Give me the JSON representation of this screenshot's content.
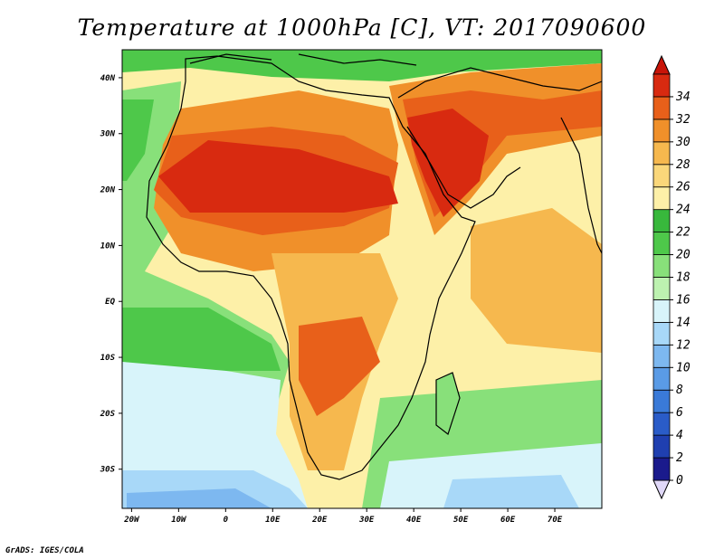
{
  "title": "Temperature at 1000hPa [C], VT: 2017090600",
  "credit": "GrADS: IGES/COLA",
  "map": {
    "lon_range": [
      -22,
      80
    ],
    "lat_range": [
      -37,
      45
    ],
    "lon_ticks": [
      "20W",
      "10W",
      "0",
      "10E",
      "20E",
      "30E",
      "40E",
      "50E",
      "60E",
      "70E"
    ],
    "lat_ticks": [
      "40N",
      "30N",
      "20N",
      "10N",
      "EQ",
      "10S",
      "20S",
      "30S"
    ]
  },
  "colorbar": {
    "labels": [
      "0",
      "2",
      "4",
      "6",
      "8",
      "10",
      "12",
      "14",
      "16",
      "18",
      "20",
      "22",
      "24",
      "26",
      "28",
      "30",
      "32",
      "34"
    ],
    "colors": [
      "#1a1a8c",
      "#1f3fb0",
      "#2a5cc8",
      "#3a7ad8",
      "#5a9be6",
      "#7db8f0",
      "#a8d8f8",
      "#d8f4fa",
      "#bdf2b0",
      "#88e07a",
      "#4ec84a",
      "#38b83c",
      "#fdf0a8",
      "#fad77a",
      "#f6b84e",
      "#f0902a",
      "#e8601a",
      "#d82a10"
    ]
  }
}
